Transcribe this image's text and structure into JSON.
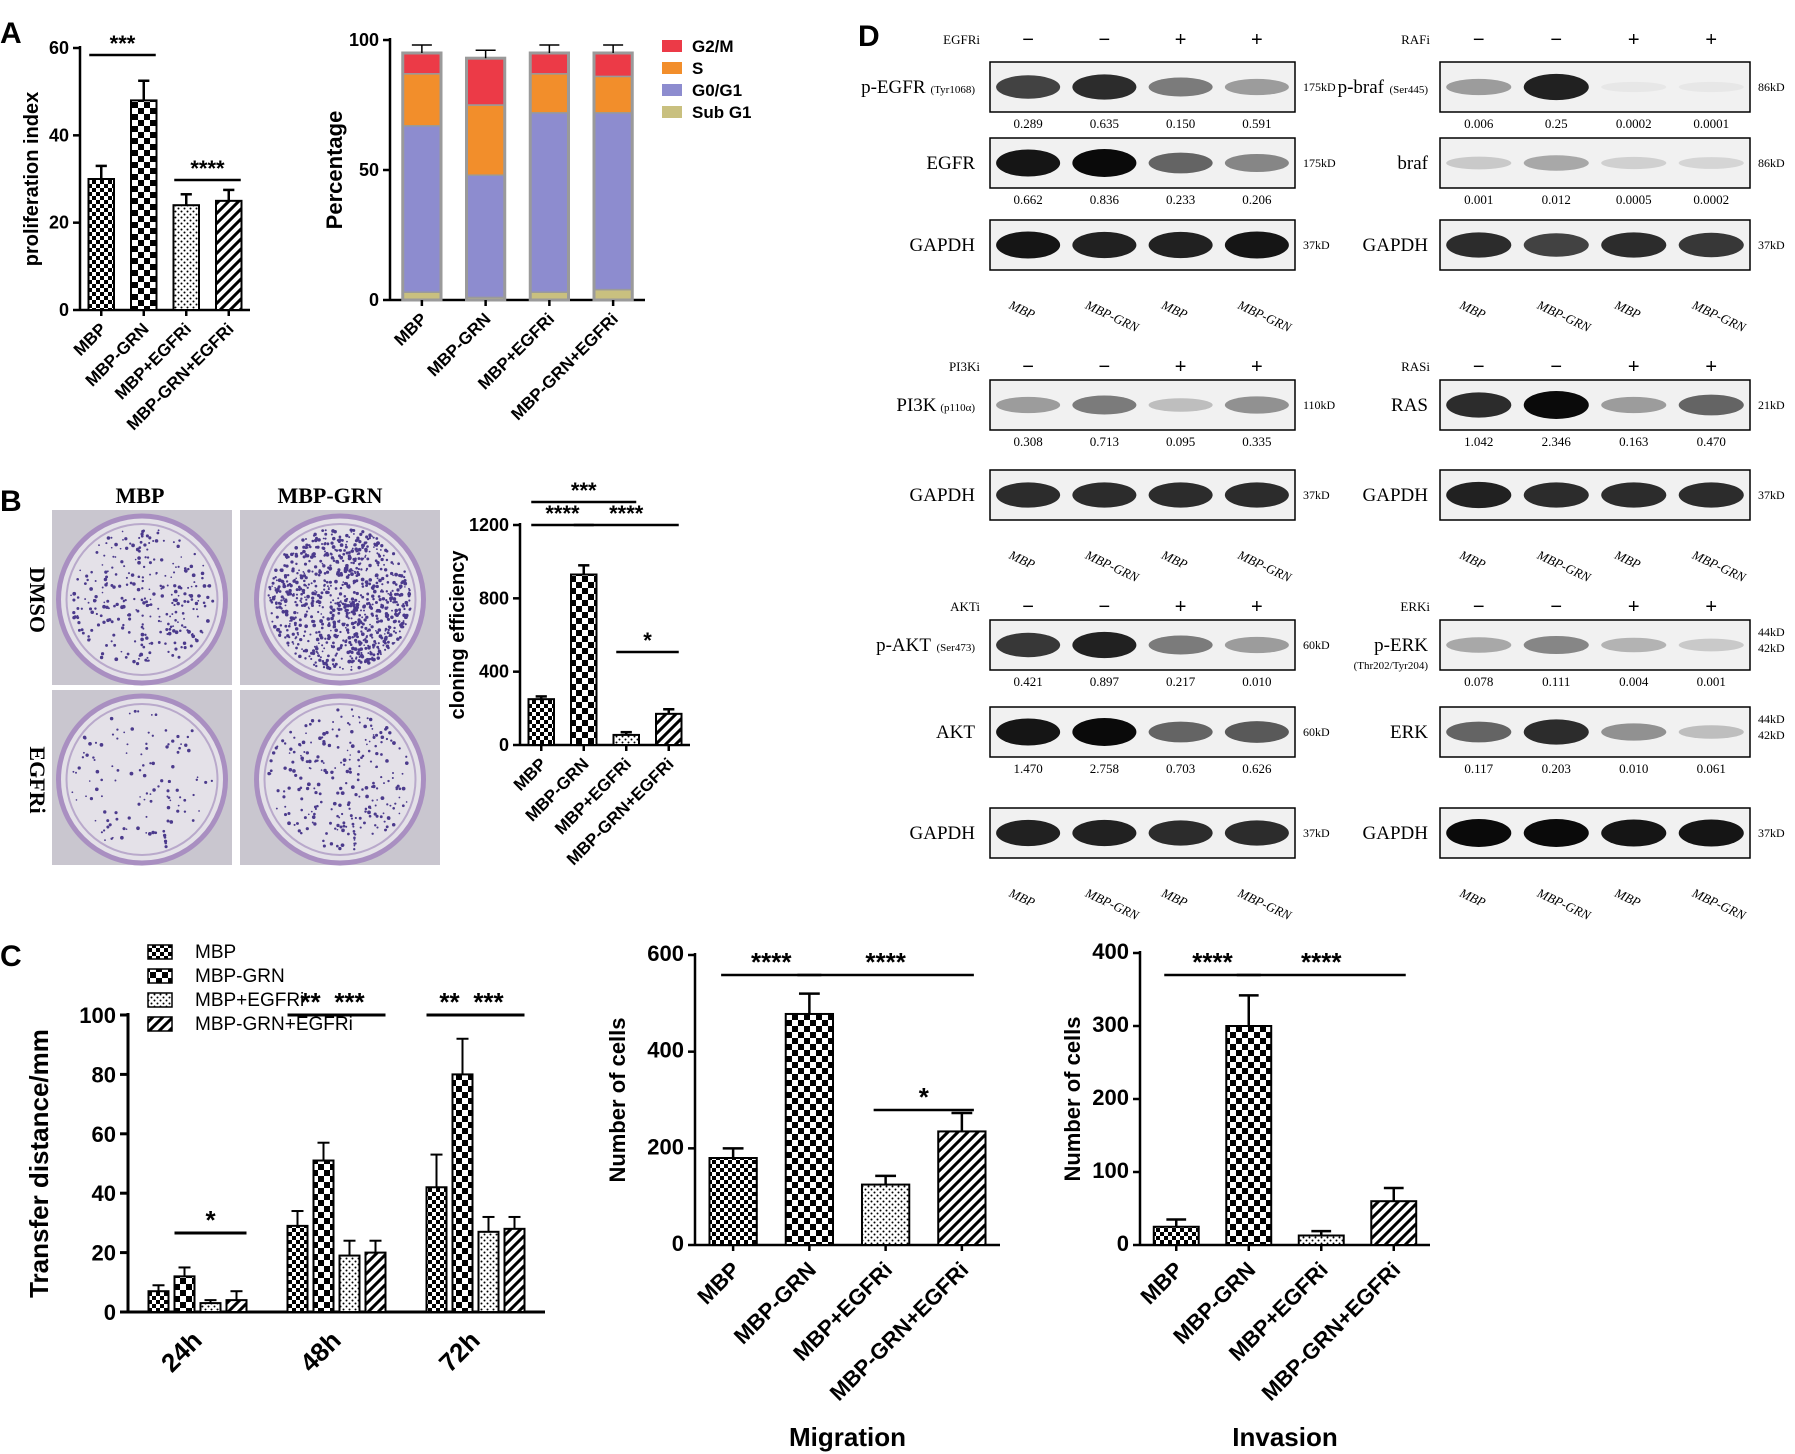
{
  "panels": {
    "A": "A",
    "B": "B",
    "C": "C",
    "D": "D"
  },
  "groups": [
    "MBP",
    "MBP-GRN",
    "MBP+EGFRi",
    "MBP-GRN+EGFRi"
  ],
  "chart_data": [
    {
      "id": "prolif",
      "type": "bar",
      "ylabel": "proliferation index",
      "categories": [
        "MBP",
        "MBP-GRN",
        "MBP+EGFRi",
        "MBP-GRN+EGFRi"
      ],
      "values": [
        30,
        48,
        24,
        25
      ],
      "errors": [
        3,
        4.5,
        2.5,
        2.5
      ],
      "ylim": [
        0,
        60
      ],
      "yticks": [
        "0",
        "20",
        "40",
        "60"
      ],
      "significance": [
        {
          "from": 0,
          "to": 1,
          "label": "***"
        },
        {
          "from": 2,
          "to": 3,
          "label": "****"
        }
      ]
    },
    {
      "id": "cellcycle",
      "type": "bar",
      "stacked": true,
      "ylabel": "Percentage",
      "categories": [
        "MBP",
        "MBP-GRN",
        "MBP+EGFRi",
        "MBP-GRN+EGFRi"
      ],
      "series": [
        {
          "name": "Sub G1",
          "color": "#c9c07f",
          "values": [
            3,
            1,
            3,
            4
          ]
        },
        {
          "name": "G0/G1",
          "color": "#8d8ccf",
          "values": [
            64,
            47,
            69,
            68
          ]
        },
        {
          "name": "S",
          "color": "#f28e2b",
          "values": [
            20,
            27,
            15,
            14
          ]
        },
        {
          "name": "G2/M",
          "color": "#ec3a47",
          "values": [
            8,
            18,
            8,
            9
          ]
        }
      ],
      "ylim": [
        0,
        100
      ],
      "yticks": [
        "0",
        "50",
        "100"
      ],
      "legend": "right"
    },
    {
      "id": "cloning",
      "type": "bar",
      "ylabel": "cloning efficiency",
      "categories": [
        "MBP",
        "MBP-GRN",
        "MBP+EGFRi",
        "MBP-GRN+EGFRi"
      ],
      "values": [
        250,
        930,
        55,
        170
      ],
      "errors": [
        15,
        50,
        15,
        25
      ],
      "ylim": [
        0,
        1200
      ],
      "yticks": [
        "0",
        "400",
        "800",
        "1200"
      ],
      "significance": [
        {
          "from": 0,
          "to": 2,
          "label": "***"
        },
        {
          "from": 0,
          "to": 1,
          "label": "****"
        },
        {
          "from": 1,
          "to": 3,
          "label": "****"
        },
        {
          "from": 2,
          "to": 3,
          "label": "*"
        }
      ]
    },
    {
      "id": "transfer",
      "type": "bar",
      "ylabel": "Transfer distance/mm",
      "categories": [
        "24h",
        "48h",
        "72h"
      ],
      "series": [
        {
          "name": "MBP",
          "values": [
            7,
            29,
            42
          ],
          "errors": [
            2,
            5,
            11
          ]
        },
        {
          "name": "MBP-GRN",
          "values": [
            12,
            51,
            80
          ],
          "errors": [
            3,
            6,
            12
          ]
        },
        {
          "name": "MBP+EGFRi",
          "values": [
            3,
            19,
            27
          ],
          "errors": [
            1,
            5,
            5
          ]
        },
        {
          "name": "MBP-GRN+EGFRi",
          "values": [
            4,
            20,
            28
          ],
          "errors": [
            3,
            4,
            4
          ]
        }
      ],
      "ylim": [
        0,
        100
      ],
      "yticks": [
        "0",
        "20",
        "40",
        "60",
        "80",
        "100"
      ],
      "legend": "top-left",
      "significance": [
        {
          "group": 0,
          "from": 1,
          "to": 3,
          "label": "*"
        },
        {
          "group": 1,
          "from": 0,
          "to": 1,
          "label": "**"
        },
        {
          "group": 1,
          "from": 1,
          "to": 3,
          "label": "***"
        },
        {
          "group": 2,
          "from": 0,
          "to": 1,
          "label": "**"
        },
        {
          "group": 2,
          "from": 1,
          "to": 3,
          "label": "***"
        }
      ]
    },
    {
      "id": "migration",
      "type": "bar",
      "title": "Migration",
      "ylabel": "Number of cells",
      "categories": [
        "MBP",
        "MBP-GRN",
        "MBP+EGFRi",
        "MBP-GRN+EGFRi"
      ],
      "values": [
        180,
        478,
        125,
        235
      ],
      "errors": [
        20,
        42,
        18,
        38
      ],
      "ylim": [
        0,
        600
      ],
      "yticks": [
        "0",
        "200",
        "400",
        "600"
      ],
      "significance": [
        {
          "from": 0,
          "to": 1,
          "label": "****"
        },
        {
          "from": 1,
          "to": 3,
          "label": "****"
        },
        {
          "from": 2,
          "to": 3,
          "label": "*"
        }
      ]
    },
    {
      "id": "invasion",
      "type": "bar",
      "title": "Invasion",
      "ylabel": "Number of cells",
      "categories": [
        "MBP",
        "MBP-GRN",
        "MBP+EGFRi",
        "MBP-GRN+EGFRi"
      ],
      "values": [
        25,
        300,
        13,
        60
      ],
      "errors": [
        10,
        42,
        6,
        18
      ],
      "ylim": [
        0,
        400
      ],
      "yticks": [
        "0",
        "100",
        "200",
        "300",
        "400"
      ],
      "significance": [
        {
          "from": 0,
          "to": 1,
          "label": "****"
        },
        {
          "from": 1,
          "to": 3,
          "label": "****"
        }
      ]
    }
  ],
  "plates": {
    "cols": [
      "MBP",
      "MBP-GRN"
    ],
    "rows": [
      "DMSO",
      "EGFRi"
    ],
    "density": [
      [
        300,
        900
      ],
      [
        120,
        260
      ]
    ]
  },
  "blots": [
    {
      "inhibitor": "EGFRi",
      "signs": [
        "−",
        "−",
        "+",
        "+"
      ],
      "lanes": [
        "MBP",
        "MBP-GRN",
        "MBP",
        "MBP-GRN"
      ],
      "rows": [
        {
          "label": "p-EGFR",
          "sub": "(Tyr1068)",
          "kd": "175kD",
          "intensity": [
            0.75,
            0.85,
            0.5,
            0.35
          ],
          "values": [
            "0.289",
            "0.635",
            "0.150",
            "0.591"
          ]
        },
        {
          "label": "EGFR",
          "sub": "",
          "kd": "175kD",
          "intensity": [
            0.95,
            1,
            0.6,
            0.45
          ],
          "values": [
            "0.662",
            "0.836",
            "0.233",
            "0.206"
          ]
        },
        {
          "label": "GAPDH",
          "sub": "",
          "kd": "37kD",
          "intensity": [
            0.95,
            0.9,
            0.9,
            0.95
          ],
          "values": []
        }
      ]
    },
    {
      "inhibitor": "RAFi",
      "signs": [
        "−",
        "−",
        "+",
        "+"
      ],
      "lanes": [
        "MBP",
        "MBP-GRN",
        "MBP",
        "MBP-GRN"
      ],
      "rows": [
        {
          "label": "p-braf",
          "sub": "(Ser445)",
          "kd": "86kD",
          "intensity": [
            0.35,
            0.9,
            0.02,
            0.02
          ],
          "values": [
            "0.006",
            "0.25",
            "0.0002",
            "0.0001"
          ]
        },
        {
          "label": "braf",
          "sub": "",
          "kd": "86kD",
          "intensity": [
            0.15,
            0.3,
            0.12,
            0.1
          ],
          "values": [
            "0.001",
            "0.012",
            "0.0005",
            "0.0002"
          ]
        },
        {
          "label": "GAPDH",
          "sub": "",
          "kd": "37kD",
          "intensity": [
            0.85,
            0.75,
            0.85,
            0.8
          ],
          "values": []
        }
      ]
    },
    {
      "inhibitor": "PI3Ki",
      "signs": [
        "−",
        "−",
        "+",
        "+"
      ],
      "lanes": [
        "MBP",
        "MBP-GRN",
        "MBP",
        "MBP-GRN"
      ],
      "rows": [
        {
          "label": "PI3K",
          "sub": "(p110α)",
          "kd": "110kD",
          "intensity": [
            0.35,
            0.5,
            0.2,
            0.4
          ],
          "values": [
            "0.308",
            "0.713",
            "0.095",
            "0.335"
          ]
        },
        {
          "label": "GAPDH",
          "sub": "",
          "kd": "37kD",
          "intensity": [
            0.85,
            0.85,
            0.85,
            0.85
          ],
          "values": []
        }
      ]
    },
    {
      "inhibitor": "RASi",
      "signs": [
        "−",
        "−",
        "+",
        "+"
      ],
      "lanes": [
        "MBP",
        "MBP-GRN",
        "MBP",
        "MBP-GRN"
      ],
      "rows": [
        {
          "label": "RAS",
          "sub": "",
          "kd": "21kD",
          "intensity": [
            0.85,
            1,
            0.35,
            0.6
          ],
          "values": [
            "1.042",
            "2.346",
            "0.163",
            "0.470"
          ]
        },
        {
          "label": "GAPDH",
          "sub": "",
          "kd": "37kD",
          "intensity": [
            0.9,
            0.85,
            0.85,
            0.85
          ],
          "values": []
        }
      ]
    },
    {
      "inhibitor": "AKTi",
      "signs": [
        "−",
        "−",
        "+",
        "+"
      ],
      "lanes": [
        "MBP",
        "MBP-GRN",
        "MBP",
        "MBP-GRN"
      ],
      "rows": [
        {
          "label": "p-AKT",
          "sub": "(Ser473)",
          "kd": "60kD",
          "intensity": [
            0.8,
            0.9,
            0.5,
            0.35
          ],
          "values": [
            "0.421",
            "0.897",
            "0.217",
            "0.010"
          ]
        },
        {
          "label": "AKT",
          "sub": "",
          "kd": "60kD",
          "intensity": [
            0.95,
            1,
            0.6,
            0.65
          ],
          "values": [
            "1.470",
            "2.758",
            "0.703",
            "0.626"
          ]
        },
        {
          "label": "GAPDH",
          "sub": "",
          "kd": "37kD",
          "intensity": [
            0.9,
            0.9,
            0.85,
            0.85
          ],
          "values": []
        }
      ]
    },
    {
      "inhibitor": "ERKi",
      "signs": [
        "−",
        "−",
        "+",
        "+"
      ],
      "lanes": [
        "MBP",
        "MBP-GRN",
        "MBP",
        "MBP-GRN"
      ],
      "rows": [
        {
          "label": "p-ERK",
          "sub": "(Thr202/Tyr204)",
          "kd": "44kD",
          "kd2": "42kD",
          "intensity": [
            0.3,
            0.45,
            0.25,
            0.15
          ],
          "values": [
            "0.078",
            "0.111",
            "0.004",
            "0.001"
          ]
        },
        {
          "label": "ERK",
          "sub": "",
          "kd": "44kD",
          "kd2": "42kD",
          "intensity": [
            0.6,
            0.85,
            0.4,
            0.2
          ],
          "values": [
            "0.117",
            "0.203",
            "0.010",
            "0.061"
          ]
        },
        {
          "label": "GAPDH",
          "sub": "",
          "kd": "37kD",
          "intensity": [
            1,
            1,
            0.95,
            0.95
          ],
          "values": []
        }
      ]
    }
  ]
}
